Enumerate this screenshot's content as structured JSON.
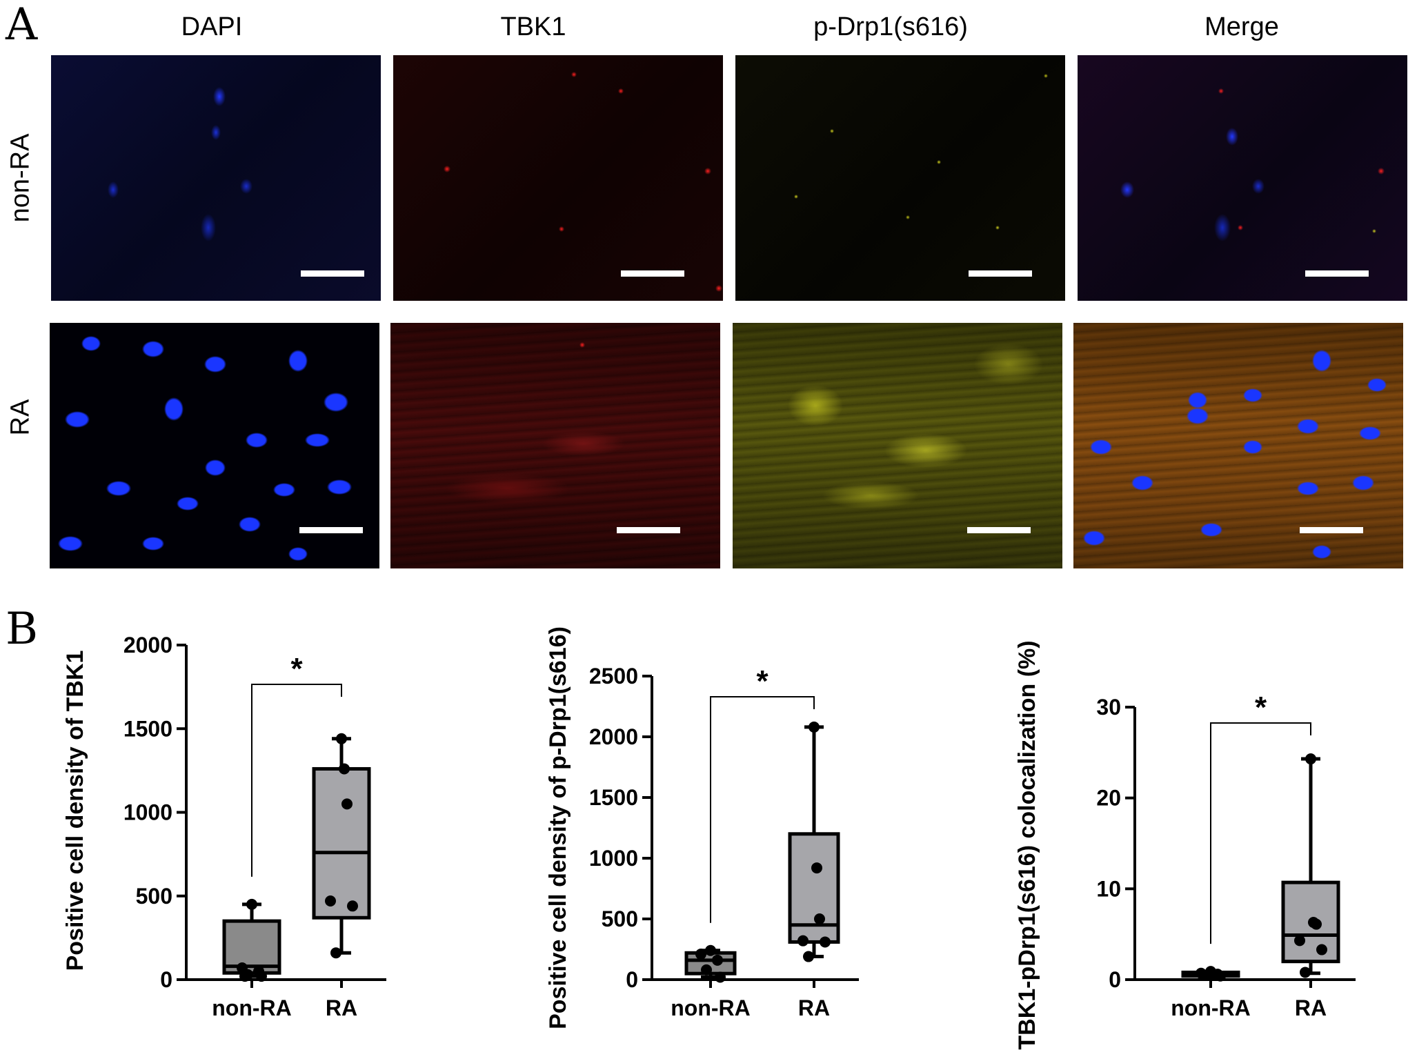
{
  "panel_a": {
    "letter": "A",
    "columns": [
      "DAPI",
      "TBK1",
      "p-Drp1(s616)",
      "Merge"
    ],
    "rows": [
      "non-RA",
      "RA"
    ]
  },
  "panel_b": {
    "letter": "B",
    "significance": "*"
  },
  "colors": {
    "box_non_ra": "#8a8a8a",
    "box_ra": "#a6a6aa",
    "dapi": "#1428ff",
    "tbk1": "#e01010",
    "pdrp1": "#d4d410"
  },
  "chart_data": [
    {
      "type": "box",
      "ylabel": "Positive cell density of TBK1",
      "categories": [
        "non-RA",
        "RA"
      ],
      "ylim": [
        0,
        2000
      ],
      "yticks": [
        0,
        500,
        1000,
        1500,
        2000
      ],
      "boxes": [
        {
          "name": "non-RA",
          "min": 20,
          "q1": 40,
          "median": 80,
          "q3": 350,
          "max": 450,
          "points": [
            450,
            70,
            50,
            30,
            20,
            20
          ]
        },
        {
          "name": "RA",
          "min": 160,
          "q1": 370,
          "median": 760,
          "q3": 1260,
          "max": 1440,
          "points": [
            1440,
            1260,
            1050,
            470,
            440,
            160
          ]
        }
      ],
      "significance": "*"
    },
    {
      "type": "box",
      "ylabel": "Positive cell density of p-Drp1(s616)",
      "categories": [
        "non-RA",
        "RA"
      ],
      "ylim": [
        0,
        2500
      ],
      "yticks": [
        0,
        500,
        1000,
        1500,
        2000,
        2500
      ],
      "boxes": [
        {
          "name": "non-RA",
          "min": 20,
          "q1": 50,
          "median": 160,
          "q3": 220,
          "max": 240,
          "points": [
            240,
            210,
            160,
            80,
            20
          ]
        },
        {
          "name": "RA",
          "min": 190,
          "q1": 310,
          "median": 450,
          "q3": 1200,
          "max": 2080,
          "points": [
            2080,
            920,
            500,
            320,
            310,
            190
          ]
        }
      ],
      "significance": "*"
    },
    {
      "type": "box",
      "ylabel": "TBK1-pDrp1(s616) colocalization (%)",
      "categories": [
        "non-RA",
        "RA"
      ],
      "ylim": [
        0,
        30
      ],
      "yticks": [
        0,
        10,
        20,
        30
      ],
      "boxes": [
        {
          "name": "non-RA",
          "min": 0.3,
          "q1": 0.4,
          "median": 0.6,
          "q3": 0.8,
          "max": 0.9,
          "points": [
            0.9,
            0.7,
            0.6,
            0.5,
            0.4
          ]
        },
        {
          "name": "RA",
          "min": 0.7,
          "q1": 2.0,
          "median": 4.9,
          "q3": 10.7,
          "max": 24.3,
          "points": [
            24.3,
            6.3,
            6.1,
            4.3,
            3.3,
            0.8
          ]
        }
      ],
      "significance": "*"
    }
  ]
}
